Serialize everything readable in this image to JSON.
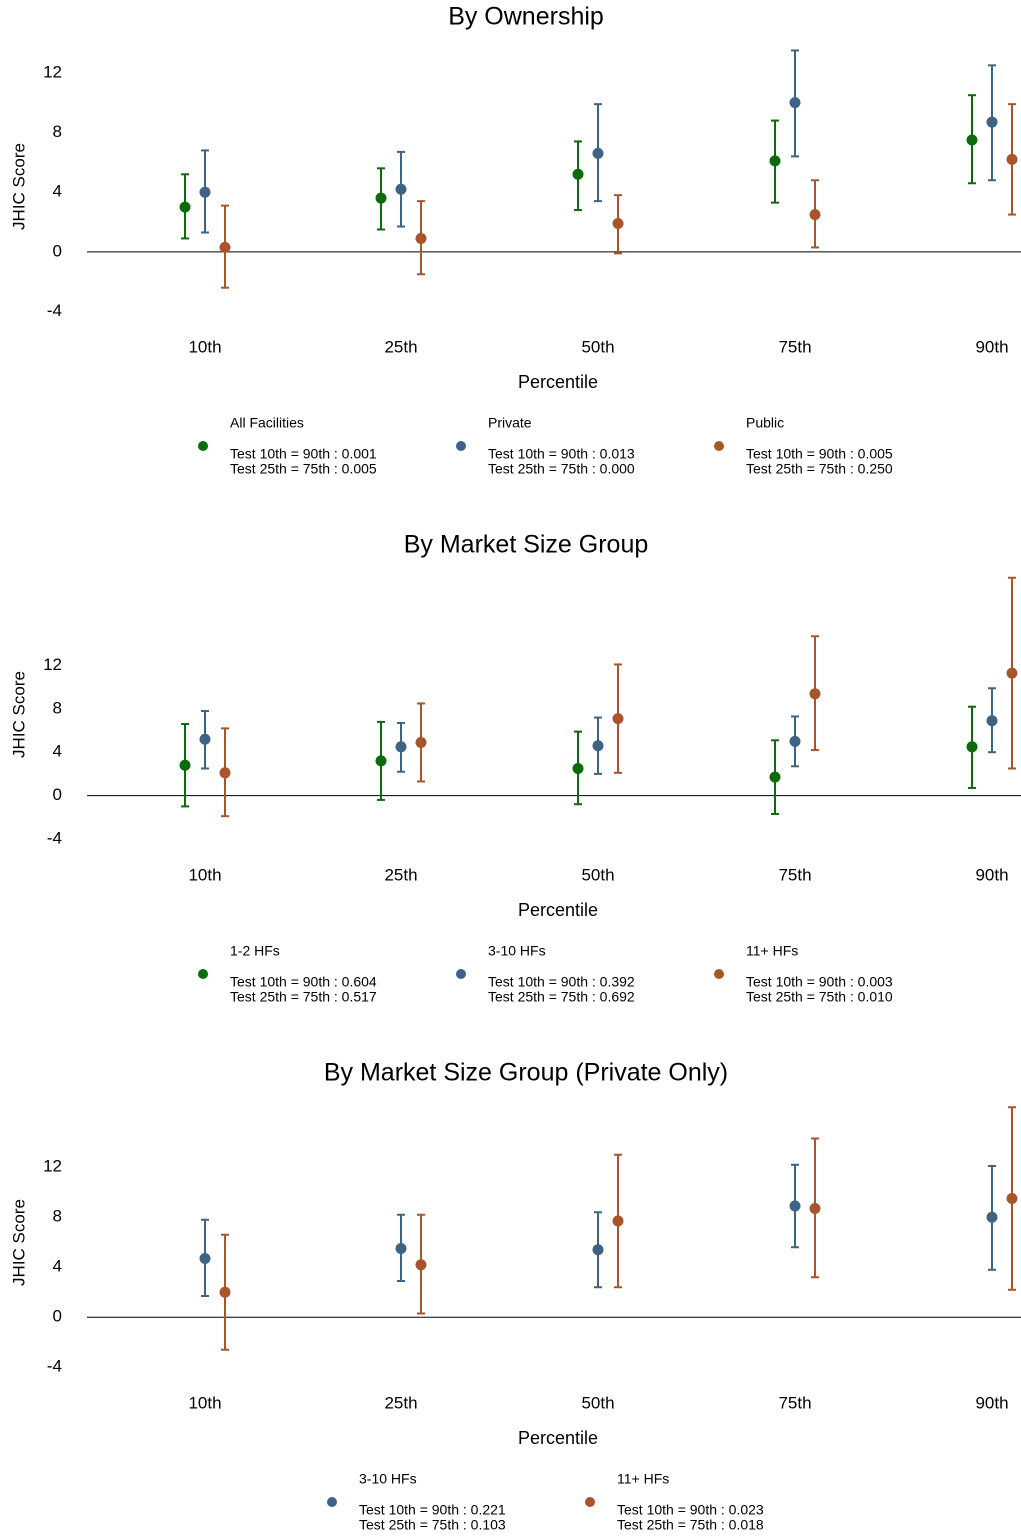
{
  "chart_data": [
    {
      "type": "errorbar",
      "title": "By Ownership",
      "y_label": "JHIC Score",
      "x_label": "Percentile",
      "categories": [
        "10th",
        "25th",
        "50th",
        "75th",
        "90th"
      ],
      "ylim": [
        -4.9,
        14.2
      ],
      "yticks": [
        -4,
        0,
        4,
        8,
        12
      ],
      "series": [
        {
          "name": "All Facilities",
          "color": "#0b6b0b",
          "notes": [
            "Test 10th = 90th : 0.001",
            "Test 25th = 75th : 0.005"
          ],
          "values": [
            3.0,
            3.6,
            5.2,
            6.1,
            7.5
          ],
          "low": [
            0.9,
            1.5,
            2.8,
            3.3,
            4.6
          ],
          "high": [
            5.2,
            5.6,
            7.4,
            8.8,
            10.5
          ]
        },
        {
          "name": "Private",
          "color": "#3e6384",
          "notes": [
            "Test 10th = 90th : 0.013",
            "Test 25th = 75th : 0.000"
          ],
          "values": [
            4.0,
            4.2,
            6.6,
            10.0,
            8.7
          ],
          "low": [
            1.3,
            1.7,
            3.4,
            6.4,
            4.8
          ],
          "high": [
            6.8,
            6.7,
            9.9,
            13.5,
            12.5
          ]
        },
        {
          "name": "Public",
          "color": "#a9552c",
          "notes": [
            "Test 10th = 90th : 0.005",
            "Test 25th = 75th : 0.250"
          ],
          "values": [
            0.3,
            0.9,
            1.9,
            2.5,
            6.2
          ],
          "low": [
            -2.4,
            -1.5,
            -0.1,
            0.3,
            2.5
          ],
          "high": [
            3.1,
            3.4,
            3.8,
            4.8,
            9.9
          ]
        }
      ]
    },
    {
      "type": "errorbar",
      "title": "By Market Size Group",
      "y_label": "JHIC Score",
      "x_label": "Percentile",
      "categories": [
        "10th",
        "25th",
        "50th",
        "75th",
        "90th"
      ],
      "ylim": [
        -5.3,
        21
      ],
      "yticks": [
        -4,
        0,
        4,
        8,
        12
      ],
      "series": [
        {
          "name": "1-2 HFs",
          "color": "#0b6b0b",
          "notes": [
            "Test 10th = 90th : 0.604",
            "Test 25th = 75th : 0.517"
          ],
          "values": [
            2.8,
            3.2,
            2.5,
            1.7,
            4.5
          ],
          "low": [
            -1.0,
            -0.4,
            -0.8,
            -1.7,
            0.7
          ],
          "high": [
            6.6,
            6.8,
            5.9,
            5.1,
            8.2
          ]
        },
        {
          "name": "3-10 HFs",
          "color": "#3e6384",
          "notes": [
            "Test 10th = 90th : 0.392",
            "Test 25th = 75th : 0.692"
          ],
          "values": [
            5.2,
            4.5,
            4.6,
            5.0,
            6.9
          ],
          "low": [
            2.5,
            2.2,
            2.0,
            2.7,
            4.0
          ],
          "high": [
            7.8,
            6.7,
            7.2,
            7.3,
            9.9
          ]
        },
        {
          "name": "11+ HFs",
          "color": "#a9552c",
          "notes": [
            "Test 10th = 90th : 0.003",
            "Test 25th = 75th : 0.010"
          ],
          "values": [
            2.1,
            4.9,
            7.1,
            9.4,
            11.3
          ],
          "low": [
            -1.9,
            1.3,
            2.1,
            4.2,
            2.5
          ],
          "high": [
            6.2,
            8.5,
            12.1,
            14.7,
            20.1
          ]
        }
      ]
    },
    {
      "type": "errorbar",
      "title": "By Market Size Group (Private Only)",
      "y_label": "JHIC Score",
      "x_label": "Percentile",
      "categories": [
        "10th",
        "25th",
        "50th",
        "75th",
        "90th"
      ],
      "ylim": [
        -5.1,
        17.7
      ],
      "yticks": [
        -4,
        0,
        4,
        8,
        12
      ],
      "series": [
        {
          "name": "3-10 HFs",
          "color": "#3e6384",
          "notes": [
            "Test 10th = 90th : 0.221",
            "Test 25th = 75th : 0.103"
          ],
          "values": [
            4.7,
            5.5,
            5.4,
            8.9,
            8.0
          ],
          "low": [
            1.7,
            2.9,
            2.4,
            5.6,
            3.8
          ],
          "high": [
            7.8,
            8.2,
            8.4,
            12.2,
            12.1
          ]
        },
        {
          "name": "11+ HFs",
          "color": "#a9552c",
          "notes": [
            "Test 10th = 90th : 0.023",
            "Test 25th = 75th : 0.018"
          ],
          "values": [
            2.0,
            4.2,
            7.7,
            8.7,
            9.5
          ],
          "low": [
            -2.6,
            0.3,
            2.4,
            3.2,
            2.2
          ],
          "high": [
            6.6,
            8.2,
            13.0,
            14.3,
            16.8
          ]
        }
      ]
    }
  ]
}
